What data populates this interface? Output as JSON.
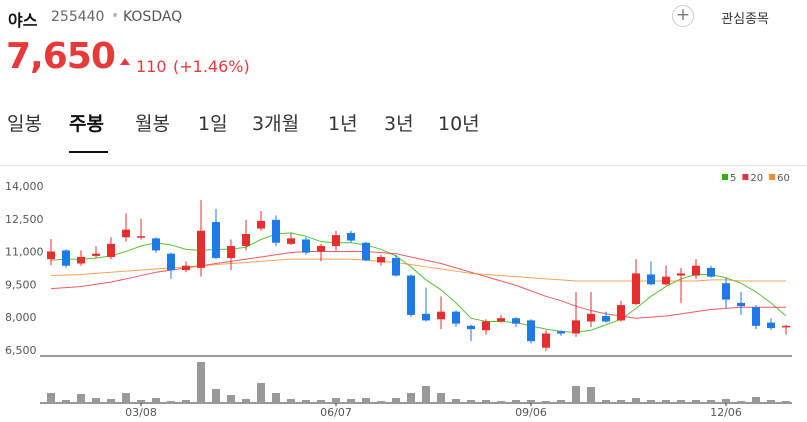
{
  "header": {
    "name": "야스",
    "code": "255440",
    "market": "KOSDAQ",
    "button": "관심종목",
    "price": "7,650",
    "change": "110",
    "change_rate": "(+1.46%)"
  },
  "tabs": [
    "일봉",
    "주봉",
    "월봉",
    "1일",
    "3개월",
    "1년",
    "3년",
    "10년"
  ],
  "selected_tab": 1,
  "chart_data": {
    "type": "candlestick",
    "categories": [
      null,
      null,
      null,
      null,
      null,
      null,
      "03/08",
      null,
      null,
      null,
      null,
      null,
      null,
      null,
      null,
      null,
      null,
      null,
      null,
      "06/07",
      null,
      null,
      null,
      null,
      null,
      null,
      null,
      null,
      null,
      null,
      null,
      null,
      "09/06",
      null,
      null,
      null,
      null,
      null,
      null,
      null,
      null,
      null,
      null,
      null,
      null,
      "12/06",
      null,
      null,
      null,
      null
    ],
    "open": [
      10700,
      11100,
      10500,
      10850,
      10800,
      11700,
      11700,
      11650,
      10950,
      10200,
      10300,
      12400,
      10750,
      11300,
      12100,
      12500,
      11400,
      11600,
      11050,
      11300,
      11900,
      11450,
      10550,
      10750,
      9950,
      8200,
      7950,
      8300,
      7650,
      7450,
      7850,
      8000,
      7900,
      6650,
      7400,
      7300,
      7850,
      8100,
      7900,
      8650,
      10000,
      9550,
      9950,
      9950,
      10300,
      9600,
      8700,
      8500,
      7800,
      7600
    ],
    "close": [
      11050,
      10400,
      10800,
      10950,
      11400,
      12050,
      11750,
      11100,
      10200,
      10400,
      12000,
      10750,
      11300,
      11850,
      12450,
      11450,
      11650,
      11000,
      11300,
      11800,
      11550,
      10650,
      10800,
      9950,
      8150,
      7900,
      8300,
      7750,
      7500,
      7850,
      8000,
      7750,
      6950,
      7300,
      7300,
      7900,
      8200,
      7850,
      8600,
      10050,
      9550,
      9900,
      10050,
      10400,
      9900,
      8850,
      8550,
      7650,
      7550,
      7650
    ],
    "high": [
      11620,
      11150,
      11100,
      11300,
      11700,
      12800,
      12550,
      11700,
      11000,
      10600,
      13400,
      13000,
      11600,
      12500,
      12900,
      12700,
      11900,
      11700,
      11400,
      12000,
      12000,
      11500,
      10900,
      10900,
      10000,
      9400,
      9000,
      8350,
      7700,
      7950,
      8150,
      8050,
      7950,
      7450,
      7450,
      9200,
      9200,
      8300,
      8800,
      10700,
      10600,
      10400,
      10300,
      10700,
      10400,
      9850,
      9200,
      8600,
      8000,
      7700
    ],
    "low": [
      10430,
      10300,
      10400,
      10750,
      10700,
      11500,
      11600,
      11000,
      9800,
      10100,
      9900,
      10700,
      10200,
      11100,
      12000,
      11300,
      11350,
      10900,
      10600,
      11100,
      11450,
      10600,
      10400,
      9900,
      8050,
      7850,
      7500,
      7600,
      6950,
      7250,
      7800,
      7600,
      6850,
      6500,
      7200,
      7150,
      7600,
      7800,
      7850,
      8600,
      9500,
      9500,
      8700,
      9800,
      9850,
      8450,
      8150,
      7500,
      7450,
      7250
    ],
    "up_color": "#e62e2e",
    "down_color": "#1e7ae6",
    "series": [
      {
        "name": "5",
        "color": "#2db400",
        "values": [
          10650,
          10700,
          10700,
          10750,
          10850,
          11050,
          11300,
          11450,
          11350,
          11150,
          11100,
          11150,
          11150,
          11250,
          11600,
          11850,
          11900,
          11750,
          11500,
          11450,
          11450,
          11350,
          11150,
          10850,
          10350,
          9750,
          9300,
          8700,
          8000,
          7850,
          7850,
          7800,
          7650,
          7500,
          7400,
          7350,
          7450,
          7700,
          7950,
          8450,
          9000,
          9450,
          9800,
          10000,
          10000,
          9850,
          9600,
          9200,
          8700,
          8100
        ]
      },
      {
        "name": "20",
        "color": "#e5323e",
        "values": [
          9350,
          9400,
          9450,
          9550,
          9650,
          9800,
          9950,
          10100,
          10200,
          10300,
          10400,
          10500,
          10600,
          10700,
          10800,
          10900,
          11000,
          11050,
          11050,
          11050,
          11050,
          11050,
          11000,
          10950,
          10800,
          10650,
          10500,
          10300,
          10100,
          9900,
          9700,
          9500,
          9250,
          9000,
          8800,
          8550,
          8350,
          8200,
          8100,
          8000,
          8050,
          8100,
          8200,
          8300,
          8400,
          8450,
          8500,
          8500,
          8500,
          8500
        ]
      },
      {
        "name": "60",
        "color": "#f08c2e",
        "values": [
          9950,
          9970,
          10000,
          10050,
          10100,
          10150,
          10200,
          10250,
          10300,
          10350,
          10400,
          10450,
          10500,
          10550,
          10600,
          10650,
          10700,
          10700,
          10700,
          10700,
          10700,
          10650,
          10600,
          10550,
          10450,
          10350,
          10250,
          10150,
          10050,
          10000,
          9950,
          9900,
          9850,
          9800,
          9750,
          9700,
          9700,
          9700,
          9700,
          9700,
          9700,
          9700,
          9700,
          9700,
          9750,
          9750,
          9700,
          9700,
          9700,
          9700
        ]
      }
    ],
    "volume": [
      10,
      3,
      9,
      5,
      4,
      10,
      3,
      5,
      2,
      3,
      41,
      14,
      8,
      4,
      20,
      10,
      4,
      3,
      3,
      5,
      4,
      5,
      2,
      5,
      10,
      17,
      10,
      4,
      3,
      3,
      2,
      3,
      3,
      2,
      3,
      17,
      16,
      3,
      3,
      5,
      3,
      3,
      3,
      3,
      3,
      4,
      2,
      6,
      3,
      2
    ],
    "volume_color": "#999999",
    "ylim": [
      6500,
      14000
    ],
    "yticks": [
      {
        "value": 6500,
        "label": "6,500"
      },
      {
        "value": 8000,
        "label": "8,000"
      },
      {
        "value": 9500,
        "label": "9,500"
      },
      {
        "value": 11000,
        "label": "11,000"
      },
      {
        "value": 12500,
        "label": "12,500"
      },
      {
        "value": 14000,
        "label": "14,000"
      }
    ],
    "legend": "top-right"
  }
}
